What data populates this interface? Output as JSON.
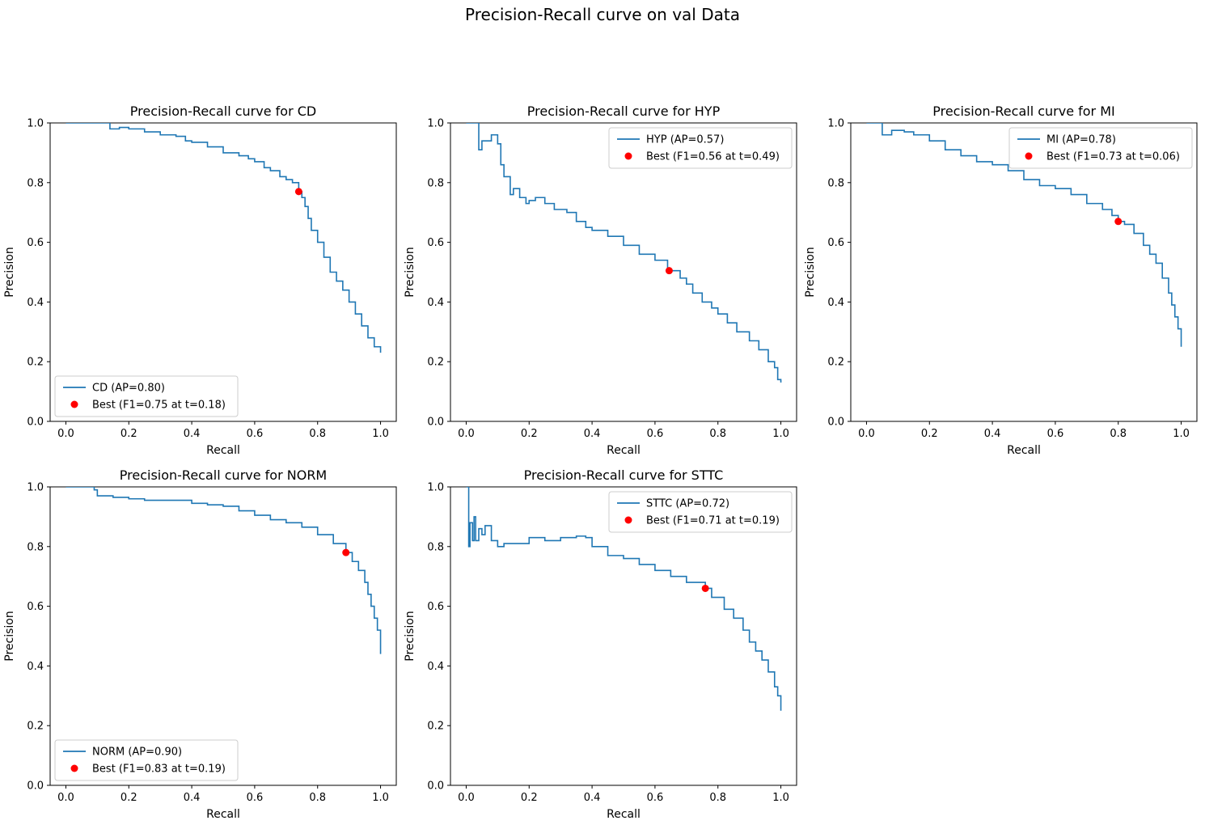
{
  "figure": {
    "suptitle": "Precision-Recall curve on val Data"
  },
  "style": {
    "curve_color": "#1f77b4",
    "best_color": "#ff0000",
    "axis_color": "#000000",
    "background": "#ffffff"
  },
  "chart_data": [
    {
      "type": "line",
      "title": "Precision-Recall curve for CD",
      "xlabel": "Recall",
      "ylabel": "Precision",
      "xlim": [
        -0.05,
        1.05
      ],
      "ylim": [
        0.0,
        1.0
      ],
      "xticks": [
        "0.0",
        "0.2",
        "0.4",
        "0.6",
        "0.8",
        "1.0"
      ],
      "yticks": [
        "0.0",
        "0.2",
        "0.4",
        "0.6",
        "0.8",
        "1.0"
      ],
      "grid": false,
      "legend_position": "lower left",
      "series": [
        {
          "name": "CD (AP=0.80)",
          "x": [
            0.0,
            0.05,
            0.1,
            0.13,
            0.14,
            0.17,
            0.2,
            0.25,
            0.3,
            0.35,
            0.38,
            0.4,
            0.45,
            0.5,
            0.55,
            0.58,
            0.6,
            0.63,
            0.65,
            0.68,
            0.7,
            0.72,
            0.74,
            0.75,
            0.76,
            0.77,
            0.78,
            0.8,
            0.82,
            0.84,
            0.86,
            0.88,
            0.9,
            0.92,
            0.94,
            0.96,
            0.98,
            1.0
          ],
          "y": [
            1.0,
            1.0,
            1.0,
            1.0,
            0.98,
            0.985,
            0.98,
            0.97,
            0.96,
            0.955,
            0.94,
            0.935,
            0.92,
            0.9,
            0.89,
            0.88,
            0.87,
            0.85,
            0.84,
            0.82,
            0.81,
            0.8,
            0.77,
            0.75,
            0.72,
            0.68,
            0.64,
            0.6,
            0.55,
            0.5,
            0.47,
            0.44,
            0.4,
            0.36,
            0.32,
            0.28,
            0.25,
            0.23
          ]
        },
        {
          "name": "Best (F1=0.75 at t=0.18)",
          "type": "scatter",
          "x": [
            0.74
          ],
          "y": [
            0.77
          ]
        }
      ]
    },
    {
      "type": "line",
      "title": "Precision-Recall curve for HYP",
      "xlabel": "Recall",
      "ylabel": "Precision",
      "xlim": [
        -0.05,
        1.05
      ],
      "ylim": [
        0.0,
        1.0
      ],
      "xticks": [
        "0.0",
        "0.2",
        "0.4",
        "0.6",
        "0.8",
        "1.0"
      ],
      "yticks": [
        "0.0",
        "0.2",
        "0.4",
        "0.6",
        "0.8",
        "1.0"
      ],
      "grid": false,
      "legend_position": "upper right",
      "series": [
        {
          "name": "HYP (AP=0.57)",
          "x": [
            0.0,
            0.035,
            0.04,
            0.05,
            0.08,
            0.1,
            0.11,
            0.12,
            0.14,
            0.15,
            0.17,
            0.19,
            0.2,
            0.22,
            0.25,
            0.28,
            0.3,
            0.32,
            0.35,
            0.38,
            0.4,
            0.45,
            0.5,
            0.55,
            0.6,
            0.64,
            0.68,
            0.7,
            0.72,
            0.75,
            0.78,
            0.8,
            0.83,
            0.86,
            0.9,
            0.93,
            0.96,
            0.98,
            0.99,
            1.0
          ],
          "y": [
            1.0,
            1.0,
            0.91,
            0.94,
            0.96,
            0.93,
            0.86,
            0.82,
            0.76,
            0.78,
            0.75,
            0.73,
            0.74,
            0.75,
            0.73,
            0.71,
            0.71,
            0.7,
            0.67,
            0.65,
            0.64,
            0.62,
            0.59,
            0.56,
            0.54,
            0.505,
            0.48,
            0.46,
            0.43,
            0.4,
            0.38,
            0.36,
            0.33,
            0.3,
            0.27,
            0.24,
            0.2,
            0.18,
            0.14,
            0.13
          ]
        },
        {
          "name": "Best (F1=0.56 at t=0.49)",
          "type": "scatter",
          "x": [
            0.645
          ],
          "y": [
            0.505
          ]
        }
      ]
    },
    {
      "type": "line",
      "title": "Precision-Recall curve for MI",
      "xlabel": "Recall",
      "ylabel": "Precision",
      "xlim": [
        -0.05,
        1.05
      ],
      "ylim": [
        0.0,
        1.0
      ],
      "xticks": [
        "0.0",
        "0.2",
        "0.4",
        "0.6",
        "0.8",
        "1.0"
      ],
      "yticks": [
        "0.0",
        "0.2",
        "0.4",
        "0.6",
        "0.8",
        "1.0"
      ],
      "grid": false,
      "legend_position": "upper right",
      "series": [
        {
          "name": "MI (AP=0.78)",
          "x": [
            0.0,
            0.04,
            0.05,
            0.08,
            0.12,
            0.15,
            0.2,
            0.25,
            0.3,
            0.35,
            0.4,
            0.45,
            0.5,
            0.55,
            0.6,
            0.65,
            0.7,
            0.75,
            0.78,
            0.8,
            0.82,
            0.85,
            0.88,
            0.9,
            0.92,
            0.94,
            0.96,
            0.97,
            0.98,
            0.99,
            1.0
          ],
          "y": [
            1.0,
            1.0,
            0.96,
            0.975,
            0.97,
            0.96,
            0.94,
            0.91,
            0.89,
            0.87,
            0.86,
            0.84,
            0.81,
            0.79,
            0.78,
            0.76,
            0.73,
            0.71,
            0.69,
            0.67,
            0.66,
            0.63,
            0.59,
            0.56,
            0.53,
            0.48,
            0.43,
            0.39,
            0.35,
            0.31,
            0.25
          ]
        },
        {
          "name": "Best (F1=0.73 at t=0.06)",
          "type": "scatter",
          "x": [
            0.8
          ],
          "y": [
            0.67
          ]
        }
      ]
    },
    {
      "type": "line",
      "title": "Precision-Recall curve for NORM",
      "xlabel": "Recall",
      "ylabel": "Precision",
      "xlim": [
        -0.05,
        1.05
      ],
      "ylim": [
        0.0,
        1.0
      ],
      "xticks": [
        "0.0",
        "0.2",
        "0.4",
        "0.6",
        "0.8",
        "1.0"
      ],
      "yticks": [
        "0.0",
        "0.2",
        "0.4",
        "0.6",
        "0.8",
        "1.0"
      ],
      "grid": false,
      "legend_position": "lower left",
      "series": [
        {
          "name": "NORM (AP=0.90)",
          "x": [
            0.0,
            0.05,
            0.09,
            0.1,
            0.15,
            0.2,
            0.25,
            0.3,
            0.35,
            0.4,
            0.45,
            0.5,
            0.55,
            0.6,
            0.65,
            0.7,
            0.75,
            0.8,
            0.85,
            0.89,
            0.91,
            0.93,
            0.95,
            0.96,
            0.97,
            0.98,
            0.99,
            1.0
          ],
          "y": [
            1.0,
            1.0,
            0.99,
            0.97,
            0.965,
            0.96,
            0.955,
            0.955,
            0.955,
            0.945,
            0.94,
            0.935,
            0.92,
            0.905,
            0.89,
            0.88,
            0.865,
            0.84,
            0.81,
            0.78,
            0.75,
            0.72,
            0.68,
            0.64,
            0.6,
            0.56,
            0.52,
            0.44
          ]
        },
        {
          "name": "Best (F1=0.83 at t=0.19)",
          "type": "scatter",
          "x": [
            0.89
          ],
          "y": [
            0.78
          ]
        }
      ]
    },
    {
      "type": "line",
      "title": "Precision-Recall curve for STTC",
      "xlabel": "Recall",
      "ylabel": "Precision",
      "xlim": [
        -0.05,
        1.05
      ],
      "ylim": [
        0.0,
        1.0
      ],
      "xticks": [
        "0.0",
        "0.2",
        "0.4",
        "0.6",
        "0.8",
        "1.0"
      ],
      "yticks": [
        "0.0",
        "0.2",
        "0.4",
        "0.6",
        "0.8",
        "1.0"
      ],
      "grid": false,
      "legend_position": "upper right",
      "series": [
        {
          "name": "STTC (AP=0.72)",
          "x": [
            0.0,
            0.005,
            0.008,
            0.012,
            0.02,
            0.025,
            0.03,
            0.04,
            0.05,
            0.06,
            0.08,
            0.1,
            0.12,
            0.15,
            0.2,
            0.25,
            0.3,
            0.35,
            0.38,
            0.4,
            0.45,
            0.5,
            0.55,
            0.6,
            0.65,
            0.7,
            0.76,
            0.78,
            0.82,
            0.85,
            0.88,
            0.9,
            0.92,
            0.94,
            0.96,
            0.98,
            0.99,
            1.0
          ],
          "y": [
            1.0,
            1.0,
            0.8,
            0.88,
            0.82,
            0.9,
            0.82,
            0.86,
            0.84,
            0.87,
            0.82,
            0.8,
            0.81,
            0.81,
            0.83,
            0.82,
            0.83,
            0.835,
            0.83,
            0.8,
            0.77,
            0.76,
            0.74,
            0.72,
            0.7,
            0.68,
            0.66,
            0.63,
            0.59,
            0.56,
            0.52,
            0.48,
            0.45,
            0.42,
            0.38,
            0.33,
            0.3,
            0.25
          ]
        },
        {
          "name": "Best (F1=0.71 at t=0.19)",
          "type": "scatter",
          "x": [
            0.76
          ],
          "y": [
            0.66
          ]
        }
      ]
    }
  ]
}
